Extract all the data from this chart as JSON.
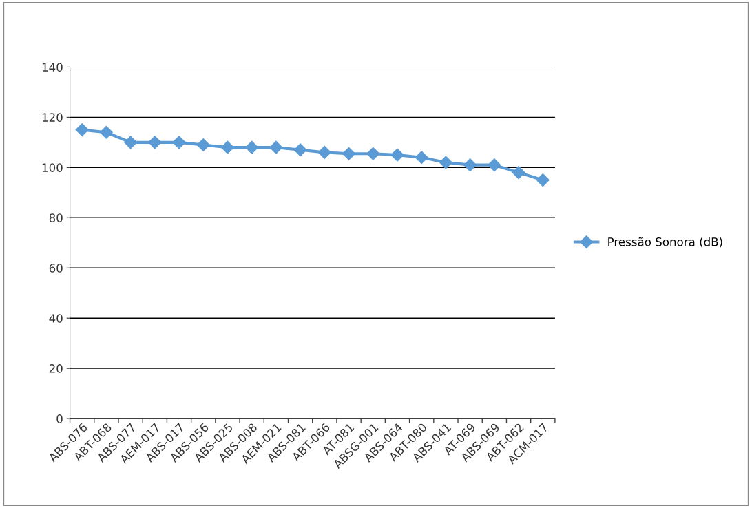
{
  "chart_data": {
    "type": "line",
    "categories": [
      "ABS-076",
      "ABT-068",
      "ABS-077",
      "AEM-017",
      "ABS-017",
      "ABS-056",
      "ABS-025",
      "ABS-008",
      "AEM-021",
      "ABS-081",
      "ABT-066",
      "AT-081",
      "ABSG-001",
      "ABS-064",
      "ABT-080",
      "ABS-041",
      "AT-069",
      "ABS-069",
      "ABT-062",
      "ACM-017"
    ],
    "series": [
      {
        "name": "Pressão Sonora (dB)",
        "color": "#5b9bd5",
        "values": [
          115,
          114,
          110,
          110,
          110,
          109,
          108,
          108,
          108,
          107,
          106,
          105.5,
          105.5,
          105,
          104,
          102,
          101,
          101,
          98,
          95
        ]
      }
    ],
    "ylim": [
      0,
      140
    ],
    "yticks": [
      0,
      20,
      40,
      60,
      80,
      100,
      120,
      140
    ],
    "grid": "y",
    "legend": "right",
    "marker": "diamond",
    "line_style": "solid"
  }
}
